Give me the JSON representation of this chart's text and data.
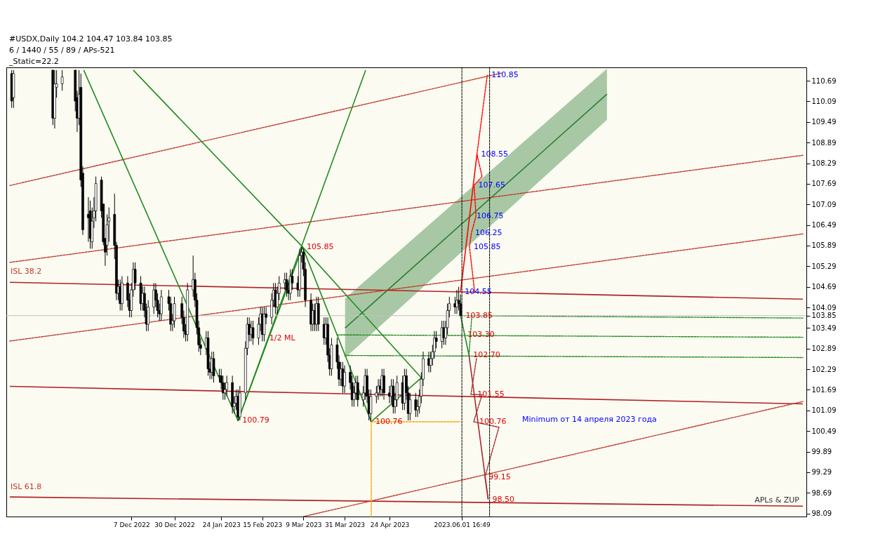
{
  "chart_data": {
    "type": "candlestick",
    "x": [
      "2022-10-04",
      "2022-10-05",
      "2022-10-26",
      "2022-10-27",
      "2022-10-28",
      "2022-10-31",
      "2022-11-07",
      "2022-11-08",
      "2022-11-09",
      "2022-11-10",
      "2022-11-11",
      "2022-11-14",
      "2022-11-15",
      "2022-11-16",
      "2022-11-17",
      "2022-11-18",
      "2022-11-21",
      "2022-11-22",
      "2022-11-23",
      "2022-11-24",
      "2022-11-25",
      "2022-11-28",
      "2022-11-29",
      "2022-11-30",
      "2022-12-01",
      "2022-12-02",
      "2022-12-05",
      "2022-12-06",
      "2022-12-07",
      "2022-12-08",
      "2022-12-09",
      "2022-12-12",
      "2022-12-13",
      "2022-12-14",
      "2022-12-15",
      "2022-12-16",
      "2022-12-19",
      "2022-12-20",
      "2022-12-21",
      "2022-12-22",
      "2022-12-23",
      "2022-12-27",
      "2022-12-28",
      "2022-12-29",
      "2022-12-30",
      "2023-01-03",
      "2023-01-04",
      "2023-01-05",
      "2023-01-06",
      "2023-01-09",
      "2023-01-10",
      "2023-01-11",
      "2023-01-12",
      "2023-01-13",
      "2023-01-16",
      "2023-01-17",
      "2023-01-18",
      "2023-01-19",
      "2023-01-20",
      "2023-01-23",
      "2023-01-24",
      "2023-01-25",
      "2023-01-26",
      "2023-01-27",
      "2023-01-30",
      "2023-01-31",
      "2023-02-01",
      "2023-02-02",
      "2023-02-03",
      "2023-02-06",
      "2023-02-07",
      "2023-02-08",
      "2023-02-09",
      "2023-02-10",
      "2023-02-13",
      "2023-02-14",
      "2023-02-15",
      "2023-02-16",
      "2023-02-17",
      "2023-02-20",
      "2023-02-21",
      "2023-02-22",
      "2023-02-23",
      "2023-02-24",
      "2023-02-27",
      "2023-02-28",
      "2023-03-01",
      "2023-03-02",
      "2023-03-03",
      "2023-03-06",
      "2023-03-07",
      "2023-03-08",
      "2023-03-09",
      "2023-03-10",
      "2023-03-13",
      "2023-03-14",
      "2023-03-15",
      "2023-03-16",
      "2023-03-17",
      "2023-03-20",
      "2023-03-21",
      "2023-03-22",
      "2023-03-23",
      "2023-03-24",
      "2023-03-27",
      "2023-03-28",
      "2023-03-29",
      "2023-03-30",
      "2023-03-31",
      "2023-04-03",
      "2023-04-04",
      "2023-04-05",
      "2023-04-06",
      "2023-04-07",
      "2023-04-10",
      "2023-04-11",
      "2023-04-12",
      "2023-04-13",
      "2023-04-14",
      "2023-04-17",
      "2023-04-18",
      "2023-04-19",
      "2023-04-20",
      "2023-04-21",
      "2023-04-24",
      "2023-04-25",
      "2023-04-26",
      "2023-04-27",
      "2023-04-28",
      "2023-05-01",
      "2023-05-02",
      "2023-05-03",
      "2023-05-04",
      "2023-05-05",
      "2023-05-08",
      "2023-05-09",
      "2023-05-10",
      "2023-05-11",
      "2023-05-12",
      "2023-05-15",
      "2023-05-16",
      "2023-05-17",
      "2023-05-18",
      "2023-05-19",
      "2023-05-22",
      "2023-05-23",
      "2023-05-24",
      "2023-05-25",
      "2023-05-26",
      "2023-05-29",
      "2023-05-30",
      "2023-05-31",
      "2023-06-01"
    ],
    "ohlc": [
      [
        110.9,
        111.0,
        109.9,
        110.1
      ],
      [
        110.2,
        111.0,
        109.9,
        110.9
      ],
      [
        111.0,
        111.0,
        109.4,
        109.6
      ],
      [
        109.6,
        111.0,
        109.3,
        110.6
      ],
      [
        110.5,
        111.0,
        110.2,
        110.6
      ],
      [
        110.6,
        111.0,
        110.4,
        110.8
      ],
      [
        111.0,
        111.0,
        109.8,
        110.1
      ],
      [
        110.2,
        110.4,
        109.2,
        109.6
      ],
      [
        109.6,
        111.0,
        109.4,
        110.3
      ],
      [
        110.5,
        110.9,
        107.6,
        107.8
      ],
      [
        108.0,
        108.2,
        106.2,
        106.35
      ],
      [
        106.8,
        107.3,
        106.0,
        106.7
      ],
      [
        106.9,
        107.2,
        105.8,
        106.1
      ],
      [
        106.0,
        107.0,
        105.8,
        106.6
      ],
      [
        106.7,
        107.3,
        106.4,
        106.9
      ],
      [
        106.9,
        107.9,
        106.6,
        107.7
      ],
      [
        107.8,
        107.9,
        106.7,
        106.9
      ],
      [
        107.1,
        107.1,
        105.9,
        106.0
      ],
      [
        106.1,
        106.1,
        105.3,
        105.7
      ],
      [
        105.9,
        106.8,
        105.6,
        106.5
      ],
      [
        106.6,
        107.0,
        106.0,
        106.7
      ],
      [
        106.8,
        107.4,
        105.5,
        105.9
      ],
      [
        105.9,
        106.0,
        104.3,
        104.5
      ],
      [
        104.5,
        104.9,
        104.3,
        104.7
      ],
      [
        104.7,
        104.9,
        104.0,
        104.2
      ],
      [
        104.2,
        105.0,
        104.0,
        104.8
      ],
      [
        104.8,
        105.0,
        104.1,
        104.3
      ],
      [
        104.3,
        104.5,
        103.8,
        104.0
      ],
      [
        104.0,
        104.8,
        103.8,
        104.6
      ],
      [
        104.6,
        105.4,
        104.4,
        105.2
      ],
      [
        105.2,
        105.4,
        104.6,
        104.8
      ],
      [
        104.8,
        105.0,
        104.0,
        104.2
      ],
      [
        104.2,
        104.7,
        104.0,
        104.5
      ],
      [
        104.5,
        104.7,
        103.8,
        104.0
      ],
      [
        104.0,
        104.2,
        103.4,
        103.6
      ],
      [
        103.6,
        104.3,
        103.4,
        104.1
      ],
      [
        104.1,
        104.8,
        103.9,
        104.6
      ],
      [
        104.6,
        104.8,
        104.1,
        104.3
      ],
      [
        104.3,
        104.5,
        103.8,
        104.0
      ],
      [
        104.0,
        104.2,
        103.7,
        103.9
      ],
      [
        103.9,
        104.6,
        103.7,
        104.4
      ],
      [
        104.4,
        104.6,
        104.0,
        104.2
      ],
      [
        104.2,
        104.4,
        103.4,
        103.6
      ],
      [
        103.6,
        103.9,
        103.4,
        103.7
      ],
      [
        103.7,
        104.4,
        103.5,
        104.2
      ],
      [
        104.2,
        104.4,
        103.6,
        103.8
      ],
      [
        103.8,
        104.0,
        103.2,
        103.4
      ],
      [
        103.4,
        103.6,
        103.1,
        103.3
      ],
      [
        103.3,
        104.8,
        103.1,
        104.6
      ],
      [
        104.6,
        105.6,
        104.4,
        104.9
      ],
      [
        104.9,
        105.1,
        104.1,
        104.3
      ],
      [
        104.3,
        104.5,
        103.3,
        103.5
      ],
      [
        103.5,
        103.7,
        102.8,
        103.0
      ],
      [
        103.0,
        103.2,
        102.7,
        102.9
      ],
      [
        102.9,
        103.4,
        102.7,
        103.2
      ],
      [
        103.2,
        103.4,
        102.1,
        102.3
      ],
      [
        102.3,
        102.5,
        102.0,
        102.2
      ],
      [
        102.2,
        102.8,
        102.0,
        102.6
      ],
      [
        102.6,
        102.8,
        101.9,
        102.1
      ],
      [
        102.1,
        102.3,
        101.9,
        102.1
      ],
      [
        102.1,
        102.3,
        101.7,
        101.9
      ],
      [
        101.9,
        102.1,
        101.4,
        101.6
      ],
      [
        101.6,
        101.9,
        101.4,
        101.7
      ],
      [
        101.7,
        102.1,
        101.5,
        101.9
      ],
      [
        101.9,
        102.1,
        101.0,
        101.2
      ],
      [
        101.2,
        101.5,
        101.0,
        101.3
      ],
      [
        101.3,
        101.7,
        101.1,
        101.5
      ],
      [
        101.5,
        101.7,
        100.79,
        100.9
      ],
      [
        100.9,
        101.8,
        100.8,
        101.6
      ],
      [
        101.6,
        103.1,
        101.4,
        102.9
      ],
      [
        102.9,
        103.8,
        102.7,
        103.6
      ],
      [
        103.6,
        103.8,
        103.1,
        103.3
      ],
      [
        103.3,
        103.7,
        103.1,
        103.5
      ],
      [
        103.5,
        103.7,
        103.0,
        103.2
      ],
      [
        103.2,
        103.8,
        103.0,
        103.6
      ],
      [
        103.6,
        104.1,
        103.4,
        103.9
      ],
      [
        103.9,
        104.1,
        103.1,
        103.3
      ],
      [
        103.3,
        104.1,
        103.1,
        103.9
      ],
      [
        103.9,
        104.1,
        103.6,
        103.8
      ],
      [
        103.8,
        104.5,
        103.6,
        104.3
      ],
      [
        104.3,
        104.8,
        104.1,
        104.6
      ],
      [
        104.6,
        104.8,
        103.9,
        104.1
      ],
      [
        104.1,
        104.7,
        103.9,
        104.5
      ],
      [
        104.5,
        105.0,
        104.3,
        104.8
      ],
      [
        104.8,
        105.1,
        104.6,
        104.9
      ],
      [
        104.9,
        105.1,
        104.4,
        104.6
      ],
      [
        104.6,
        104.8,
        104.3,
        104.5
      ],
      [
        104.5,
        105.2,
        104.3,
        105.0
      ],
      [
        105.0,
        105.2,
        104.6,
        104.8
      ],
      [
        104.8,
        105.0,
        104.4,
        104.6
      ],
      [
        104.6,
        105.8,
        104.4,
        105.6
      ],
      [
        105.6,
        105.85,
        105.4,
        105.7
      ],
      [
        105.7,
        105.8,
        105.0,
        105.2
      ],
      [
        105.2,
        105.4,
        104.1,
        104.3
      ],
      [
        104.3,
        104.5,
        103.4,
        103.6
      ],
      [
        103.6,
        104.2,
        103.4,
        104.0
      ],
      [
        104.0,
        104.2,
        103.4,
        103.6
      ],
      [
        103.6,
        104.4,
        103.4,
        104.2
      ],
      [
        104.2,
        104.4,
        103.4,
        103.6
      ],
      [
        103.6,
        103.8,
        103.0,
        103.2
      ],
      [
        103.2,
        103.8,
        103.0,
        103.6
      ],
      [
        103.6,
        103.8,
        102.5,
        102.7
      ],
      [
        102.7,
        102.9,
        102.1,
        102.3
      ],
      [
        102.3,
        103.2,
        102.1,
        103.0
      ],
      [
        103.0,
        103.2,
        102.3,
        102.5
      ],
      [
        102.5,
        102.7,
        101.8,
        102.0
      ],
      [
        102.0,
        102.5,
        101.8,
        102.3
      ],
      [
        102.3,
        102.5,
        101.6,
        101.8
      ],
      [
        101.8,
        102.4,
        101.6,
        102.2
      ],
      [
        102.2,
        102.4,
        101.7,
        101.9
      ],
      [
        101.9,
        102.1,
        101.2,
        101.4
      ],
      [
        101.4,
        101.8,
        101.2,
        101.6
      ],
      [
        101.6,
        102.1,
        101.4,
        101.9
      ],
      [
        101.9,
        102.1,
        101.2,
        101.4
      ],
      [
        101.4,
        101.8,
        101.2,
        101.6
      ],
      [
        101.6,
        102.3,
        101.4,
        102.1
      ],
      [
        102.1,
        102.3,
        101.3,
        101.5
      ],
      [
        101.5,
        101.7,
        100.8,
        101.0
      ],
      [
        101.0,
        101.7,
        100.76,
        101.5
      ],
      [
        101.5,
        101.8,
        101.3,
        101.6
      ],
      [
        101.6,
        102.0,
        101.4,
        101.8
      ],
      [
        101.8,
        102.0,
        101.5,
        101.7
      ],
      [
        101.7,
        102.3,
        101.5,
        102.1
      ],
      [
        102.1,
        102.3,
        101.4,
        101.6
      ],
      [
        101.6,
        101.8,
        101.3,
        101.5
      ],
      [
        101.5,
        102.0,
        101.3,
        101.8
      ],
      [
        101.8,
        102.0,
        101.0,
        101.2
      ],
      [
        101.2,
        101.6,
        101.0,
        101.4
      ],
      [
        101.4,
        102.1,
        101.2,
        101.9
      ],
      [
        101.9,
        102.1,
        101.1,
        101.3
      ],
      [
        101.3,
        102.3,
        101.1,
        102.1
      ],
      [
        102.1,
        102.3,
        101.4,
        101.6
      ],
      [
        101.6,
        101.8,
        100.8,
        101.0
      ],
      [
        101.0,
        101.6,
        100.8,
        101.4
      ],
      [
        101.4,
        101.6,
        100.9,
        101.1
      ],
      [
        101.1,
        101.4,
        100.9,
        101.2
      ],
      [
        101.2,
        101.7,
        101.0,
        101.5
      ],
      [
        101.5,
        102.2,
        101.3,
        102.0
      ],
      [
        102.0,
        102.8,
        101.8,
        102.6
      ],
      [
        102.6,
        102.8,
        102.2,
        102.4
      ],
      [
        102.4,
        102.8,
        102.2,
        102.6
      ],
      [
        102.6,
        103.0,
        102.4,
        102.8
      ],
      [
        102.8,
        103.4,
        102.6,
        103.2
      ],
      [
        103.2,
        103.4,
        102.9,
        103.1
      ],
      [
        103.1,
        103.7,
        102.9,
        103.5
      ],
      [
        103.5,
        103.7,
        103.0,
        103.2
      ],
      [
        103.2,
        103.7,
        103.0,
        103.5
      ],
      [
        103.5,
        104.2,
        103.3,
        104.0
      ],
      [
        104.0,
        104.4,
        103.8,
        104.2
      ],
      [
        104.2,
        104.4,
        103.9,
        104.1
      ],
      [
        104.1,
        104.6,
        103.9,
        104.3
      ],
      [
        104.3,
        104.69,
        104.0,
        104.2
      ],
      [
        104.2,
        104.47,
        103.84,
        103.85
      ]
    ],
    "series": [
      {
        "type": "line",
        "color": "#2e7d32",
        "line_style": "solid",
        "x": [
          "2023-03-31T06:00",
          "2023-08-18T06:00"
        ],
        "values": [
          103.49,
          110.3
        ],
        "lower": [
          102.62,
          109.55
        ],
        "upper": [
          104.35,
          111.04
        ]
      },
      {
        "type": "line",
        "color": "#b22222",
        "line_style": "solid",
        "x": [
          "2022-10-03",
          "2023-12-01"
        ],
        "values": [
          104.82,
          104.33
        ]
      },
      {
        "type": "line",
        "color": "#b22222",
        "line_style": "solid",
        "x": [
          "2022-10-03",
          "2023-12-01"
        ],
        "values": [
          101.79,
          101.28
        ]
      },
      {
        "type": "line",
        "color": "#b22222",
        "line_style": "solid",
        "x": [
          "2022-10-03",
          "2023-12-01"
        ],
        "values": [
          98.57,
          98.3
        ]
      },
      {
        "type": "line",
        "color": "#c0392b",
        "line_style": "dashed",
        "x": [
          "2022-10-03",
          "2023-06-23T06:00"
        ],
        "values": [
          107.64,
          110.92
        ]
      },
      {
        "type": "line",
        "color": "#c0392b",
        "line_style": "dashed",
        "x": [
          "2022-10-03",
          "2023-12-01"
        ],
        "values": [
          105.4,
          108.52
        ]
      },
      {
        "type": "line",
        "color": "#c0392b",
        "line_style": "dashed",
        "x": [
          "2022-10-03",
          "2023-12-01"
        ],
        "values": [
          103.11,
          106.23
        ]
      },
      {
        "type": "line",
        "color": "#c0392b",
        "line_style": "dashed",
        "x": [
          "2023-03-09",
          "2023-12-01"
        ],
        "values": [
          98.0,
          101.35
        ]
      },
      {
        "type": "line",
        "color": "#228b22",
        "line_style": "solid",
        "x": [
          "2022-11-11T12:00",
          "2023-02-02",
          "2023-03-08T12:00",
          "2023-04-14T06:00",
          "2023-05-11"
        ],
        "values": [
          111.0,
          100.79,
          105.85,
          100.76,
          102.04
        ]
      },
      {
        "type": "line",
        "color": "#228b22",
        "line_style": "solid",
        "x": [
          "2022-12-08",
          "2023-03-08T12:00",
          "2023-05-11"
        ],
        "values": [
          111.0,
          105.85,
          102.04
        ]
      },
      {
        "type": "line",
        "color": "#228b22",
        "line_style": "solid",
        "x": [
          "2023-02-02",
          "2023-04-11T06:00"
        ],
        "values": [
          100.79,
          111.0
        ]
      },
      {
        "type": "line",
        "color": "#ffa500",
        "line_style": "dashed",
        "x": [
          "2023-04-14T06:00",
          "2023-05-31T18:00"
        ],
        "values": [
          100.76,
          100.76
        ]
      },
      {
        "type": "line",
        "color": "#ffa500",
        "line_style": "dashed",
        "x": [
          "2023-04-14T06:00",
          "2023-04-14T06:00"
        ],
        "values": [
          100.76,
          98.0
        ]
      },
      {
        "type": "line",
        "color": "#228b22",
        "line_style": "dashed",
        "x": [
          "2023-06-01",
          "2023-12-01"
        ],
        "values": [
          103.85,
          103.78
        ]
      },
      {
        "type": "line",
        "color": "#228b22",
        "line_style": "dashed",
        "x": [
          "2023-03-27",
          "2023-12-01"
        ],
        "values": [
          103.29,
          103.22
        ]
      },
      {
        "type": "line",
        "color": "#228b22",
        "line_style": "dashed",
        "x": [
          "2023-03-31",
          "2023-12-01"
        ],
        "values": [
          102.69,
          102.63
        ]
      },
      {
        "type": "line",
        "color": "#ff0000",
        "line_style": "solid",
        "x": [
          "2023-06-01",
          "2023-06-09T18:00"
        ],
        "values": [
          104.55,
          108.55
        ]
      },
      {
        "type": "line",
        "color": "#ff0000",
        "line_style": "dashed",
        "x": [
          "2023-06-08T12:00",
          "2023-06-05T18:00",
          "2023-06-06T18:00",
          "2023-06-09T06:00",
          "2023-06-08T06:00",
          "2023-06-12T12:00",
          "2023-06-09T18:00",
          "2023-06-15T06:00"
        ],
        "values": [
          104.55,
          105.85,
          106.25,
          106.75,
          107.65,
          107.9,
          108.55,
          110.85
        ]
      },
      {
        "type": "line",
        "color": "#228b22",
        "line_style": "solid",
        "x": [
          "2023-06-01",
          "2023-06-05T12:00"
        ],
        "values": [
          103.85,
          102.7
        ]
      },
      {
        "type": "line",
        "color": "#228b22",
        "line_style": "dashed",
        "x": [
          "2023-06-05T12:00",
          "2023-06-07"
        ],
        "values": [
          102.7,
          103.85
        ]
      },
      {
        "type": "line",
        "color": "#a52a2a",
        "line_style": "solid",
        "x": [
          "2023-06-05T12:00",
          "2023-06-15T18:00"
        ],
        "values": [
          102.7,
          98.5
        ]
      },
      {
        "type": "line",
        "color": "#a52a2a",
        "line_style": "dashed",
        "x": [
          "2023-06-09T12:00",
          "2023-06-06T12:00",
          "2023-06-12T12:00",
          "2023-06-08",
          "2023-06-21T12:00",
          "2023-06-14",
          "2023-06-15T18:00"
        ],
        "values": [
          102.6,
          101.55,
          101.55,
          100.76,
          100.6,
          99.15,
          98.5
        ]
      }
    ],
    "ref_lines": [
      {
        "axis": "y",
        "value": 103.85,
        "color": "#c0c0c0",
        "line_style": "solid"
      },
      {
        "axis": "x",
        "value": "2023-06-01T16:49",
        "color": "#000000",
        "line_style": "dashed"
      },
      {
        "axis": "x",
        "value": "2023-06-16T12:00",
        "color": "#000000",
        "line_style": "dashed"
      }
    ],
    "annotations": [
      "#USDX,Daily 104.2 104.47 103.84 103.85",
      "6 / 1440 / 55 / 89 / APs-521",
      "_Static=22.2",
      "ISL 38.2",
      "ISL 61.8",
      "APLs & ZUP",
      {
        "text": "110.85",
        "x": "2023-06-15T06:00",
        "y": 110.85
      },
      {
        "text": "108.55",
        "x": "2023-06-09T18:00",
        "y": 108.55
      },
      {
        "text": "107.65",
        "x": "2023-06-08T06:00",
        "y": 107.65
      },
      {
        "text": "106.75",
        "x": "2023-06-07T06:00",
        "y": 106.75
      },
      {
        "text": "106.25",
        "x": "2023-06-06T12:00",
        "y": 106.25
      },
      {
        "text": "105.85",
        "x": "2023-06-05T18:00",
        "y": 105.85
      },
      {
        "text": "104.55",
        "x": "2023-06-01",
        "y": 104.55
      },
      {
        "text": "103.85",
        "x": "2023-06-01T12:00",
        "y": 103.85
      },
      {
        "text": "103.30",
        "x": "2023-06-02T12:00",
        "y": 103.3
      },
      {
        "text": "102.70",
        "x": "2023-06-05T12:00",
        "y": 102.7
      },
      {
        "text": "101.55",
        "x": "2023-06-07T18:00",
        "y": 101.55
      },
      {
        "text": "100.76",
        "x": "2023-06-08T18:00",
        "y": 100.76
      },
      {
        "text": "99.15",
        "x": "2023-06-13T18:00",
        "y": 99.15
      },
      {
        "text": "98.50",
        "x": "2023-06-15T18:00",
        "y": 98.5
      },
      {
        "text": "105.85",
        "x": "2023-03-08T12:00",
        "y": 105.85
      },
      {
        "text": "100.79",
        "x": "2023-02-02",
        "y": 100.79
      },
      {
        "text": "100.76",
        "x": "2023-04-14T06:00",
        "y": 100.76
      },
      {
        "text": "1/2 ML",
        "x": "2023-02-16T12:00",
        "y": 103.2
      },
      "Minimum от 14 апреля 2023 года"
    ],
    "xlim": [
      "2022-10-03",
      "2023-12-01"
    ],
    "ylim": [
      98.0,
      111.08
    ],
    "xticks": [
      {
        "value": "2022-12-07",
        "label": "7 Dec 2022"
      },
      {
        "value": "2022-12-30",
        "label": "30 Dec 2022"
      },
      {
        "value": "2023-01-24",
        "label": "24 Jan 2023"
      },
      {
        "value": "2023-02-15",
        "label": "15 Feb 2023"
      },
      {
        "value": "2023-03-09",
        "label": "9 Mar 2023"
      },
      {
        "value": "2023-03-31",
        "label": "31 Mar 2023"
      },
      {
        "value": "2023-04-24",
        "label": "24 Apr 2023"
      },
      {
        "value": "2023-06-01T16:49",
        "label": "2023.06.01 16:49"
      }
    ],
    "yticks": [
      98.09,
      98.69,
      99.29,
      99.89,
      100.49,
      101.09,
      101.69,
      102.29,
      102.89,
      103.49,
      103.85,
      104.09,
      104.69,
      105.29,
      105.89,
      106.49,
      107.09,
      107.69,
      108.29,
      108.89,
      109.49,
      110.09,
      110.69
    ]
  }
}
